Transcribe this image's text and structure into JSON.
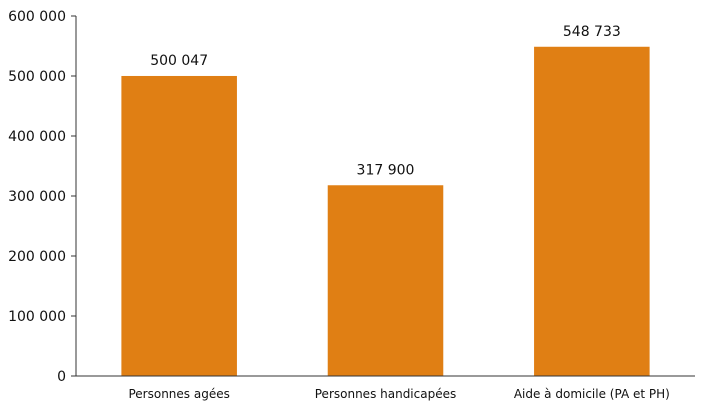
{
  "chart_data": {
    "type": "bar",
    "categories": [
      "Personnes agées",
      "Personnes handicapées",
      "Aide à domicile (PA et PH)"
    ],
    "values": [
      500047,
      317900,
      548733
    ],
    "value_labels": [
      "500 047",
      "317 900",
      "548 733"
    ],
    "ylim": [
      0,
      600000
    ],
    "yticks": [
      0,
      100000,
      200000,
      300000,
      400000,
      500000,
      600000
    ],
    "ytick_labels": [
      "0",
      "100 000",
      "200 000",
      "300 000",
      "400 000",
      "500 000",
      "600 000"
    ],
    "grid": false,
    "bar_color": "#E07F14"
  }
}
